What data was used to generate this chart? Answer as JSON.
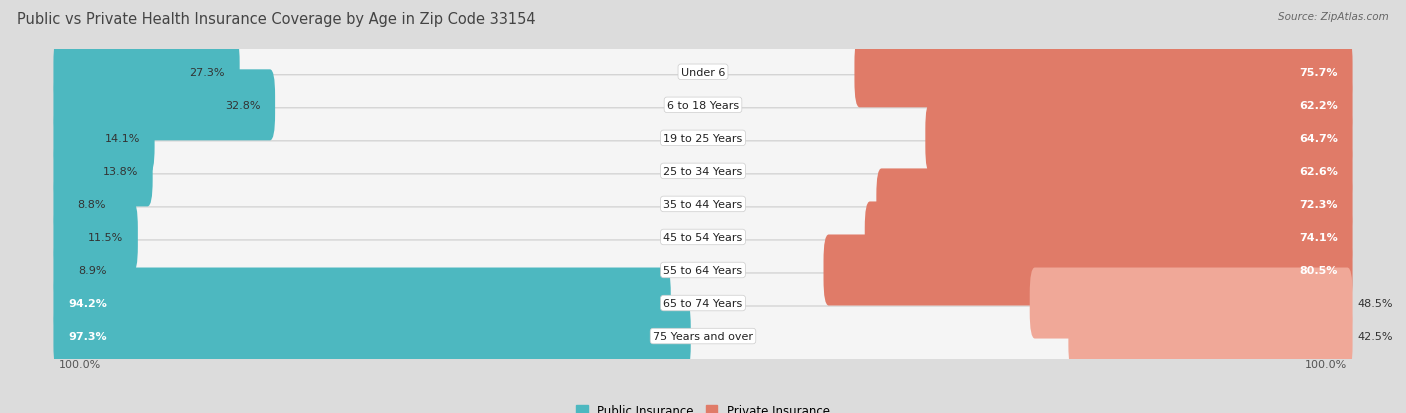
{
  "title": "Public vs Private Health Insurance Coverage by Age in Zip Code 33154",
  "source": "Source: ZipAtlas.com",
  "categories": [
    "Under 6",
    "6 to 18 Years",
    "19 to 25 Years",
    "25 to 34 Years",
    "35 to 44 Years",
    "45 to 54 Years",
    "55 to 64 Years",
    "65 to 74 Years",
    "75 Years and over"
  ],
  "public_values": [
    27.3,
    32.8,
    14.1,
    13.8,
    8.8,
    11.5,
    8.9,
    94.2,
    97.3
  ],
  "private_values": [
    75.7,
    62.2,
    64.7,
    62.6,
    72.3,
    74.1,
    80.5,
    48.5,
    42.5
  ],
  "public_color": "#4db8c0",
  "private_color_strong": "#e07b68",
  "private_color_light": "#f0a898",
  "bg_color": "#dcdcdc",
  "row_bg_color": "#f5f5f5",
  "row_border_color": "#cccccc",
  "legend_public": "Public Insurance",
  "legend_private": "Private Insurance",
  "max_value": 100.0,
  "title_fontsize": 10.5,
  "label_fontsize": 8.0,
  "value_fontsize": 8.0
}
